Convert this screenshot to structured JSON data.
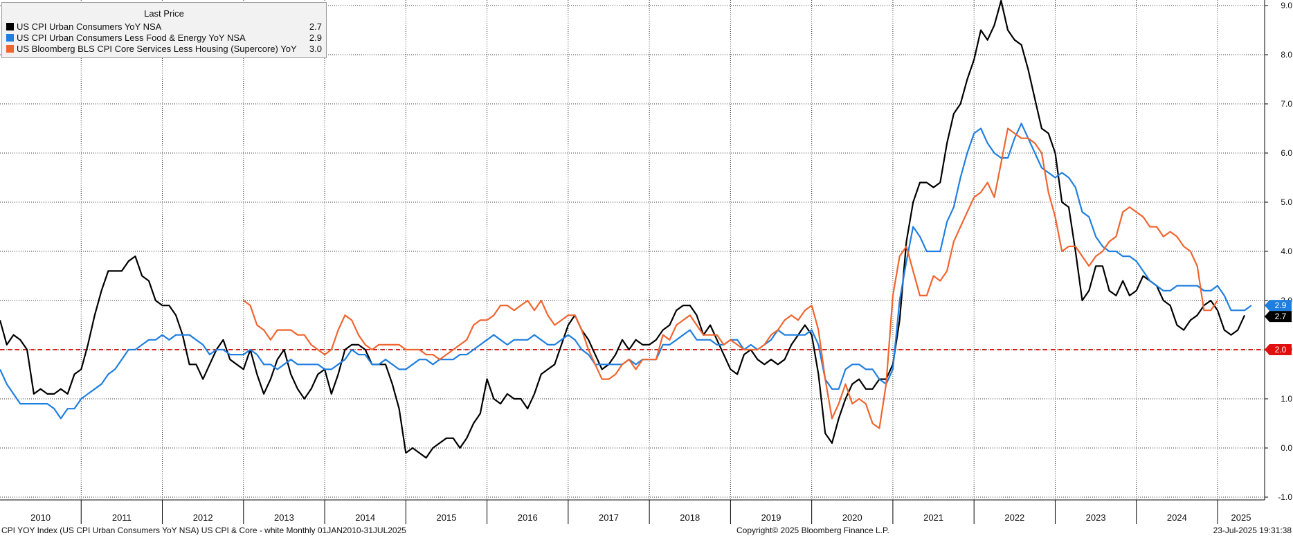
{
  "legend": {
    "header": "Last Price",
    "items": [
      {
        "name": "US CPI Urban Consumers YoY NSA",
        "value": "2.7",
        "color": "#000000"
      },
      {
        "name": "US CPI Urban Consumers Less Food & Energy YoY NSA",
        "value": "2.9",
        "color": "#1f7fe0"
      },
      {
        "name": "US Bloomberg BLS CPI Core Services Less Housing (Supercore) YoY",
        "value": "3.0",
        "color": "#f0652f"
      }
    ]
  },
  "footer": {
    "left": "CPI YOY Index (US CPI Urban Consumers YoY NSA) US CPI & Core - white  Monthly 01JAN2010-31JUL2025",
    "center": "Copyright© 2025 Bloomberg Finance L.P.",
    "right": "23-Jul-2025 19:31:38"
  },
  "chart_data": {
    "type": "line",
    "x_start": "2010-01",
    "x_end": "2025-07",
    "x_ticks": [
      "2010",
      "2011",
      "2012",
      "2013",
      "2014",
      "2015",
      "2016",
      "2017",
      "2018",
      "2019",
      "2020",
      "2021",
      "2022",
      "2023",
      "2024",
      "2025"
    ],
    "y_ticks": [
      "9.0",
      "8.0",
      "7.0",
      "6.0",
      "5.0",
      "4.0",
      "3.0",
      "2.0",
      "1.0",
      "0.0",
      "-1.0"
    ],
    "ylim": [
      -1.0,
      9.0
    ],
    "grid": true,
    "legend_position": "top-left",
    "reference_line": {
      "value": 2.0,
      "label": "2.0",
      "color": "#d62020"
    },
    "last_value_tags": [
      {
        "label": "2.9",
        "value": 2.9,
        "color": "#1f7fe0"
      },
      {
        "label": "2.7",
        "value": 2.7,
        "color": "#000000"
      },
      {
        "label": "2.0",
        "value": 2.0,
        "color": "#e01010"
      }
    ],
    "series": [
      {
        "name": "US CPI Urban Consumers YoY NSA",
        "color": "#000000",
        "start": "2010-01",
        "values": [
          2.6,
          2.1,
          2.3,
          2.2,
          2.0,
          1.1,
          1.2,
          1.1,
          1.1,
          1.2,
          1.1,
          1.5,
          1.6,
          2.1,
          2.7,
          3.2,
          3.6,
          3.6,
          3.6,
          3.8,
          3.9,
          3.5,
          3.4,
          3.0,
          2.9,
          2.9,
          2.7,
          2.3,
          1.7,
          1.7,
          1.4,
          1.7,
          2.0,
          2.2,
          1.8,
          1.7,
          1.6,
          2.0,
          1.5,
          1.1,
          1.4,
          1.8,
          2.0,
          1.5,
          1.2,
          1.0,
          1.2,
          1.5,
          1.6,
          1.1,
          1.5,
          2.0,
          2.1,
          2.1,
          2.0,
          1.7,
          1.7,
          1.7,
          1.3,
          0.8,
          -0.1,
          0.0,
          -0.1,
          -0.2,
          0.0,
          0.1,
          0.2,
          0.2,
          0.0,
          0.2,
          0.5,
          0.7,
          1.4,
          1.0,
          0.9,
          1.1,
          1.0,
          1.0,
          0.8,
          1.1,
          1.5,
          1.6,
          1.7,
          2.1,
          2.5,
          2.7,
          2.4,
          2.2,
          1.9,
          1.6,
          1.7,
          1.9,
          2.2,
          2.0,
          2.2,
          2.1,
          2.1,
          2.2,
          2.4,
          2.5,
          2.8,
          2.9,
          2.9,
          2.7,
          2.3,
          2.5,
          2.2,
          1.9,
          1.6,
          1.5,
          1.9,
          2.0,
          1.8,
          1.7,
          1.8,
          1.7,
          1.8,
          2.1,
          2.3,
          2.5,
          2.3,
          1.5,
          0.3,
          0.1,
          0.6,
          1.0,
          1.3,
          1.4,
          1.2,
          1.2,
          1.4,
          1.4,
          1.7,
          2.6,
          4.2,
          5.0,
          5.4,
          5.4,
          5.3,
          5.4,
          6.2,
          6.8,
          7.0,
          7.5,
          7.9,
          8.5,
          8.3,
          8.6,
          9.1,
          8.5,
          8.3,
          8.2,
          7.7,
          7.1,
          6.5,
          6.4,
          6.0,
          5.0,
          4.9,
          4.0,
          3.0,
          3.2,
          3.7,
          3.7,
          3.2,
          3.1,
          3.4,
          3.1,
          3.2,
          3.5,
          3.4,
          3.3,
          3.0,
          2.9,
          2.5,
          2.4,
          2.6,
          2.7,
          2.9,
          3.0,
          2.8,
          2.4,
          2.3,
          2.4,
          2.7
        ]
      },
      {
        "name": "US CPI Urban Consumers Less Food & Energy YoY NSA",
        "color": "#1f7fe0",
        "start": "2010-01",
        "values": [
          1.6,
          1.3,
          1.1,
          0.9,
          0.9,
          0.9,
          0.9,
          0.9,
          0.8,
          0.6,
          0.8,
          0.8,
          1.0,
          1.1,
          1.2,
          1.3,
          1.5,
          1.6,
          1.8,
          2.0,
          2.0,
          2.1,
          2.2,
          2.2,
          2.3,
          2.2,
          2.3,
          2.3,
          2.3,
          2.2,
          2.1,
          1.9,
          2.0,
          2.0,
          1.9,
          1.9,
          1.9,
          2.0,
          1.9,
          1.7,
          1.7,
          1.6,
          1.7,
          1.8,
          1.7,
          1.7,
          1.7,
          1.7,
          1.6,
          1.6,
          1.7,
          1.8,
          2.0,
          1.9,
          1.9,
          1.7,
          1.7,
          1.8,
          1.7,
          1.6,
          1.6,
          1.7,
          1.8,
          1.8,
          1.7,
          1.8,
          1.8,
          1.8,
          1.9,
          1.9,
          2.0,
          2.1,
          2.2,
          2.3,
          2.2,
          2.1,
          2.2,
          2.2,
          2.2,
          2.3,
          2.2,
          2.1,
          2.1,
          2.2,
          2.3,
          2.2,
          2.0,
          1.9,
          1.7,
          1.7,
          1.7,
          1.7,
          1.7,
          1.8,
          1.7,
          1.8,
          1.8,
          1.8,
          2.1,
          2.1,
          2.2,
          2.3,
          2.4,
          2.2,
          2.2,
          2.2,
          2.1,
          2.1,
          2.2,
          2.2,
          2.0,
          2.1,
          2.0,
          2.1,
          2.2,
          2.4,
          2.3,
          2.3,
          2.3,
          2.3,
          2.4,
          2.1,
          1.4,
          1.2,
          1.2,
          1.6,
          1.7,
          1.7,
          1.6,
          1.6,
          1.4,
          1.3,
          1.6,
          3.0,
          3.8,
          4.5,
          4.3,
          4.0,
          4.0,
          4.0,
          4.6,
          4.9,
          5.5,
          6.0,
          6.4,
          6.5,
          6.2,
          6.0,
          5.9,
          5.9,
          6.3,
          6.6,
          6.3,
          6.0,
          5.7,
          5.6,
          5.5,
          5.6,
          5.5,
          5.3,
          4.8,
          4.7,
          4.3,
          4.1,
          4.0,
          4.0,
          3.9,
          3.9,
          3.8,
          3.6,
          3.4,
          3.3,
          3.2,
          3.2,
          3.3,
          3.3,
          3.3,
          3.3,
          3.2,
          3.2,
          3.3,
          3.1,
          2.8,
          2.8,
          2.8,
          2.9
        ]
      },
      {
        "name": "US Bloomberg BLS CPI Core Services Less Housing (Supercore) YoY",
        "color": "#f0652f",
        "start": "2013-01",
        "values": [
          3.0,
          2.9,
          2.5,
          2.4,
          2.2,
          2.4,
          2.4,
          2.4,
          2.3,
          2.3,
          2.1,
          2.0,
          1.9,
          2.0,
          2.4,
          2.7,
          2.6,
          2.3,
          2.1,
          2.0,
          2.1,
          2.1,
          2.1,
          2.1,
          2.0,
          2.0,
          2.0,
          1.9,
          1.9,
          1.8,
          1.9,
          2.0,
          2.1,
          2.2,
          2.5,
          2.6,
          2.6,
          2.7,
          2.9,
          2.9,
          2.8,
          2.9,
          3.0,
          2.8,
          3.0,
          2.7,
          2.5,
          2.6,
          2.7,
          2.7,
          2.4,
          2.0,
          1.7,
          1.4,
          1.4,
          1.5,
          1.7,
          1.8,
          1.6,
          1.8,
          1.8,
          1.8,
          2.3,
          2.2,
          2.5,
          2.6,
          2.7,
          2.5,
          2.3,
          2.3,
          2.3,
          2.1,
          2.2,
          2.1,
          2.0,
          2.0,
          2.0,
          2.1,
          2.3,
          2.4,
          2.6,
          2.7,
          2.6,
          2.8,
          2.9,
          2.4,
          1.4,
          0.6,
          0.9,
          1.3,
          0.9,
          1.0,
          0.9,
          0.5,
          0.4,
          1.3,
          3.1,
          3.9,
          4.1,
          3.6,
          3.1,
          3.1,
          3.5,
          3.4,
          3.6,
          4.2,
          4.5,
          4.8,
          5.1,
          5.2,
          5.4,
          5.1,
          5.8,
          6.5,
          6.4,
          6.3,
          6.3,
          6.2,
          6.0,
          5.2,
          4.7,
          4.0,
          4.1,
          4.1,
          3.9,
          3.7,
          3.9,
          4.0,
          4.2,
          4.3,
          4.8,
          4.9,
          4.8,
          4.7,
          4.5,
          4.5,
          4.3,
          4.4,
          4.3,
          4.1,
          4.0,
          3.7,
          2.8,
          2.8,
          3.0
        ]
      }
    ]
  }
}
